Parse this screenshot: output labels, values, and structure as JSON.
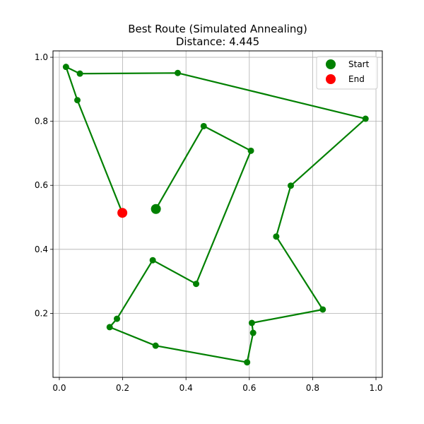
{
  "chart_data": {
    "type": "line",
    "title": "Best Route (Simulated Annealing)",
    "subtitle": "Distance: 4.445",
    "xlabel": "",
    "ylabel": "",
    "xlim": [
      -0.02,
      1.02
    ],
    "ylim": [
      0.0,
      1.02
    ],
    "x_ticks": [
      "0.0",
      "0.2",
      "0.4",
      "0.6",
      "0.8",
      "1.0"
    ],
    "y_ticks": [
      "0.2",
      "0.4",
      "0.6",
      "0.8",
      "1.0"
    ],
    "grid": true,
    "legend_position": "top-right",
    "route_color": "#008000",
    "start_color": "#008000",
    "end_color": "#ff0000",
    "series": [
      {
        "x": [
          0.305,
          0.456,
          0.605,
          0.432,
          0.295,
          0.182,
          0.159,
          0.304,
          0.593,
          0.612,
          0.608,
          0.832,
          0.685,
          0.731,
          0.967,
          0.374,
          0.065,
          0.021,
          0.057,
          0.199
        ],
        "y": [
          0.526,
          0.785,
          0.708,
          0.292,
          0.366,
          0.183,
          0.157,
          0.099,
          0.047,
          0.139,
          0.17,
          0.212,
          0.44,
          0.599,
          0.808,
          0.951,
          0.949,
          0.97,
          0.866,
          0.514
        ]
      }
    ],
    "legend": [
      {
        "label": "Start",
        "color": "#008000"
      },
      {
        "label": "End",
        "color": "#ff0000"
      }
    ]
  }
}
